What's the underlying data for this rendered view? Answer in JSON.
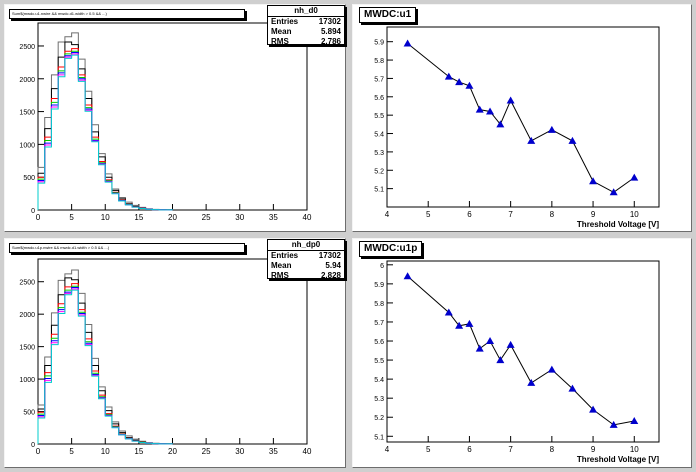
{
  "chart_data": [
    {
      "type": "bar",
      "title": "nh_d0",
      "subtitle": "Sum$(mwdc.u1.nwire && mwdc.d1.width > 0.5 && ...)",
      "stats": {
        "name": "nh_d0",
        "entries_label": "Entries",
        "entries": "17302",
        "mean_label": "Mean",
        "mean": "5.894",
        "rms_label": "RMS",
        "rms": "2.786"
      },
      "xlim": [
        0,
        40
      ],
      "ylim": [
        0,
        2850
      ],
      "xticks": [
        0,
        5,
        10,
        15,
        20,
        25,
        30,
        35,
        40
      ],
      "yticks": [
        0,
        500,
        1000,
        1500,
        2000,
        2500
      ],
      "bin_edges": [
        0,
        1,
        2,
        3,
        4,
        5,
        6,
        7,
        8,
        9,
        10,
        11,
        12,
        13,
        14,
        15,
        16,
        17,
        18,
        19,
        20
      ],
      "series": [
        {
          "color": "#6e6e6e",
          "values": [
            650,
            1410,
            2060,
            2560,
            2640,
            2700,
            2300,
            1810,
            1300,
            860,
            550,
            320,
            190,
            120,
            70,
            40,
            20,
            10,
            5,
            2
          ]
        },
        {
          "color": "#000000",
          "values": [
            560,
            1240,
            1850,
            2330,
            2560,
            2520,
            2150,
            1700,
            1190,
            810,
            500,
            300,
            170,
            95,
            55,
            30,
            15,
            8,
            4,
            2
          ]
        },
        {
          "color": "#ff0000",
          "values": [
            500,
            1110,
            1700,
            2180,
            2420,
            2460,
            2060,
            1600,
            1110,
            740,
            460,
            270,
            150,
            85,
            48,
            26,
            13,
            7,
            3,
            1
          ]
        },
        {
          "color": "#00cc00",
          "values": [
            470,
            1060,
            1640,
            2120,
            2380,
            2420,
            2020,
            1560,
            1080,
            720,
            445,
            262,
            145,
            82,
            46,
            25,
            12,
            6,
            3,
            1
          ]
        },
        {
          "color": "#0000ff",
          "values": [
            450,
            1020,
            1600,
            2090,
            2350,
            2400,
            2000,
            1540,
            1060,
            705,
            436,
            256,
            142,
            80,
            45,
            24,
            12,
            6,
            3,
            1
          ]
        },
        {
          "color": "#ff00ff",
          "values": [
            430,
            990,
            1570,
            2060,
            2330,
            2380,
            1980,
            1520,
            1050,
            698,
            430,
            252,
            140,
            79,
            44,
            24,
            11,
            6,
            3,
            1
          ]
        },
        {
          "color": "#00cccc",
          "values": [
            410,
            960,
            1540,
            2030,
            2310,
            2360,
            1960,
            1505,
            1040,
            690,
            425,
            248,
            138,
            78,
            43,
            23,
            11,
            5,
            2,
            1
          ]
        }
      ]
    },
    {
      "type": "line",
      "title": "MWDC:u1",
      "xlabel": "Threshold Voltage [V]",
      "xlim": [
        4,
        10.6
      ],
      "ylim": [
        5.0,
        5.98
      ],
      "xticks": [
        4,
        5,
        6,
        7,
        8,
        9,
        10
      ],
      "yticks": [
        5.1,
        5.2,
        5.3,
        5.4,
        5.5,
        5.6,
        5.7,
        5.8,
        5.9
      ],
      "x": [
        4.5,
        5.5,
        5.75,
        6.0,
        6.25,
        6.5,
        6.75,
        7.0,
        7.5,
        8.0,
        8.5,
        9.0,
        9.5,
        10.0
      ],
      "y": [
        5.89,
        5.71,
        5.68,
        5.66,
        5.53,
        5.52,
        5.45,
        5.58,
        5.36,
        5.42,
        5.36,
        5.14,
        5.08,
        5.16
      ],
      "color": "#0000cc"
    },
    {
      "type": "bar",
      "title": "nh_dp0",
      "subtitle": "Sum$(mwdc.u1p.nwire && mwdc.d1.width > 0.5 && ...)",
      "stats": {
        "name": "nh_dp0",
        "entries_label": "Entries",
        "entries": "17302",
        "mean_label": "Mean",
        "mean": "5.94",
        "rms_label": "RMS",
        "rms": "2.828"
      },
      "xlim": [
        0,
        40
      ],
      "ylim": [
        0,
        2850
      ],
      "xticks": [
        0,
        5,
        10,
        15,
        20,
        25,
        30,
        35,
        40
      ],
      "yticks": [
        0,
        500,
        1000,
        1500,
        2000,
        2500
      ],
      "bin_edges": [
        0,
        1,
        2,
        3,
        4,
        5,
        6,
        7,
        8,
        9,
        10,
        11,
        12,
        13,
        14,
        15,
        16,
        17,
        18,
        19,
        20
      ],
      "series": [
        {
          "color": "#6e6e6e",
          "values": [
            600,
            1340,
            2020,
            2520,
            2620,
            2680,
            2320,
            1840,
            1320,
            880,
            570,
            340,
            200,
            125,
            75,
            42,
            22,
            11,
            5,
            2
          ]
        },
        {
          "color": "#000000",
          "values": [
            540,
            1210,
            1830,
            2300,
            2560,
            2530,
            2170,
            1720,
            1210,
            820,
            515,
            310,
            175,
            98,
            57,
            31,
            16,
            8,
            4,
            2
          ]
        },
        {
          "color": "#ff0000",
          "values": [
            490,
            1100,
            1690,
            2160,
            2420,
            2470,
            2070,
            1620,
            1125,
            752,
            468,
            276,
            154,
            87,
            49,
            27,
            13,
            7,
            3,
            1
          ]
        },
        {
          "color": "#00cc00",
          "values": [
            460,
            1050,
            1630,
            2100,
            2370,
            2430,
            2030,
            1575,
            1090,
            728,
            452,
            266,
            148,
            83,
            47,
            25,
            12,
            6,
            3,
            1
          ]
        },
        {
          "color": "#0000ff",
          "values": [
            440,
            1010,
            1590,
            2070,
            2340,
            2410,
            2010,
            1552,
            1070,
            713,
            441,
            259,
            144,
            81,
            46,
            24,
            12,
            6,
            3,
            1
          ]
        },
        {
          "color": "#ff00ff",
          "values": [
            420,
            980,
            1560,
            2040,
            2320,
            2390,
            1990,
            1530,
            1058,
            705,
            435,
            255,
            142,
            80,
            45,
            24,
            11,
            6,
            3,
            1
          ]
        },
        {
          "color": "#00cccc",
          "values": [
            400,
            950,
            1530,
            2010,
            2300,
            2370,
            1970,
            1515,
            1046,
            697,
            430,
            251,
            140,
            79,
            44,
            23,
            11,
            5,
            2,
            1
          ]
        }
      ]
    },
    {
      "type": "line",
      "title": "MWDC:u1p",
      "xlabel": "Threshold Voltage [V]",
      "xlim": [
        4,
        10.6
      ],
      "ylim": [
        5.07,
        6.02
      ],
      "xticks": [
        4,
        5,
        6,
        7,
        8,
        9,
        10
      ],
      "yticks": [
        5.1,
        5.2,
        5.3,
        5.4,
        5.5,
        5.6,
        5.7,
        5.8,
        5.9,
        6
      ],
      "x": [
        4.5,
        5.5,
        5.75,
        6.0,
        6.25,
        6.5,
        6.75,
        7.0,
        7.5,
        8.0,
        8.5,
        9.0,
        9.5,
        10.0
      ],
      "y": [
        5.94,
        5.75,
        5.68,
        5.69,
        5.56,
        5.6,
        5.5,
        5.58,
        5.38,
        5.45,
        5.35,
        5.24,
        5.16,
        5.18
      ],
      "color": "#0000cc"
    }
  ]
}
